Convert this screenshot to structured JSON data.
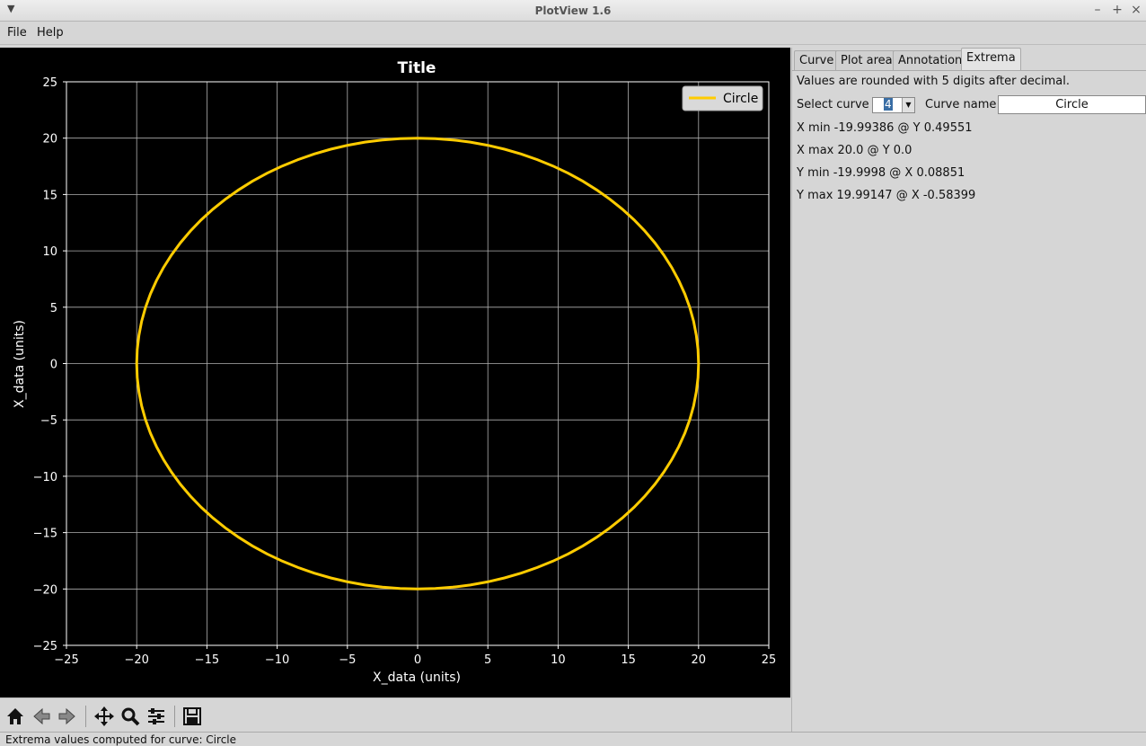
{
  "window": {
    "title": "PlotView 1.6"
  },
  "menu": {
    "file": "File",
    "help": "Help"
  },
  "tabs": [
    {
      "label": "Curve"
    },
    {
      "label": "Plot area"
    },
    {
      "label": "Annotation"
    },
    {
      "label": "Extrema"
    }
  ],
  "extrema": {
    "note": "Values are rounded with 5 digits after decimal.",
    "select_curve_label": "Select curve",
    "select_curve_value": "4",
    "curve_name_label": "Curve name",
    "curve_name_value": "Circle",
    "x_min": "X min -19.99386 @ Y 0.49551",
    "x_max": "X max 20.0 @ Y 0.0",
    "y_min": "Y min -19.9998 @ X 0.08851",
    "y_max": "Y max 19.99147 @ X -0.58399"
  },
  "toolbar": {
    "icons": [
      "home-icon",
      "back-icon",
      "forward-icon",
      "pan-icon",
      "zoom-icon",
      "configure-icon",
      "save-icon"
    ]
  },
  "status": {
    "text": "Extrema values computed for curve: Circle"
  },
  "colors": {
    "curve": "#ffcc00",
    "plot_bg": "#000000",
    "grid": "#b0b0b0"
  },
  "chart_data": {
    "type": "line",
    "title": "Title",
    "xlabel": "X_data (units)",
    "ylabel": "X_data (units)",
    "xlim": [
      -25,
      25
    ],
    "ylim": [
      -25,
      25
    ],
    "xticks": [
      "−25",
      "−20",
      "−15",
      "−10",
      "−5",
      "0",
      "5",
      "10",
      "15",
      "20",
      "25"
    ],
    "yticks": [
      "−25",
      "−20",
      "−15",
      "−10",
      "−5",
      "0",
      "5",
      "10",
      "15",
      "20",
      "25"
    ],
    "grid": true,
    "legend_position": "top-right",
    "series": [
      {
        "name": "Circle",
        "shape": "circle",
        "center": [
          0,
          0
        ],
        "radius": 20
      }
    ]
  }
}
